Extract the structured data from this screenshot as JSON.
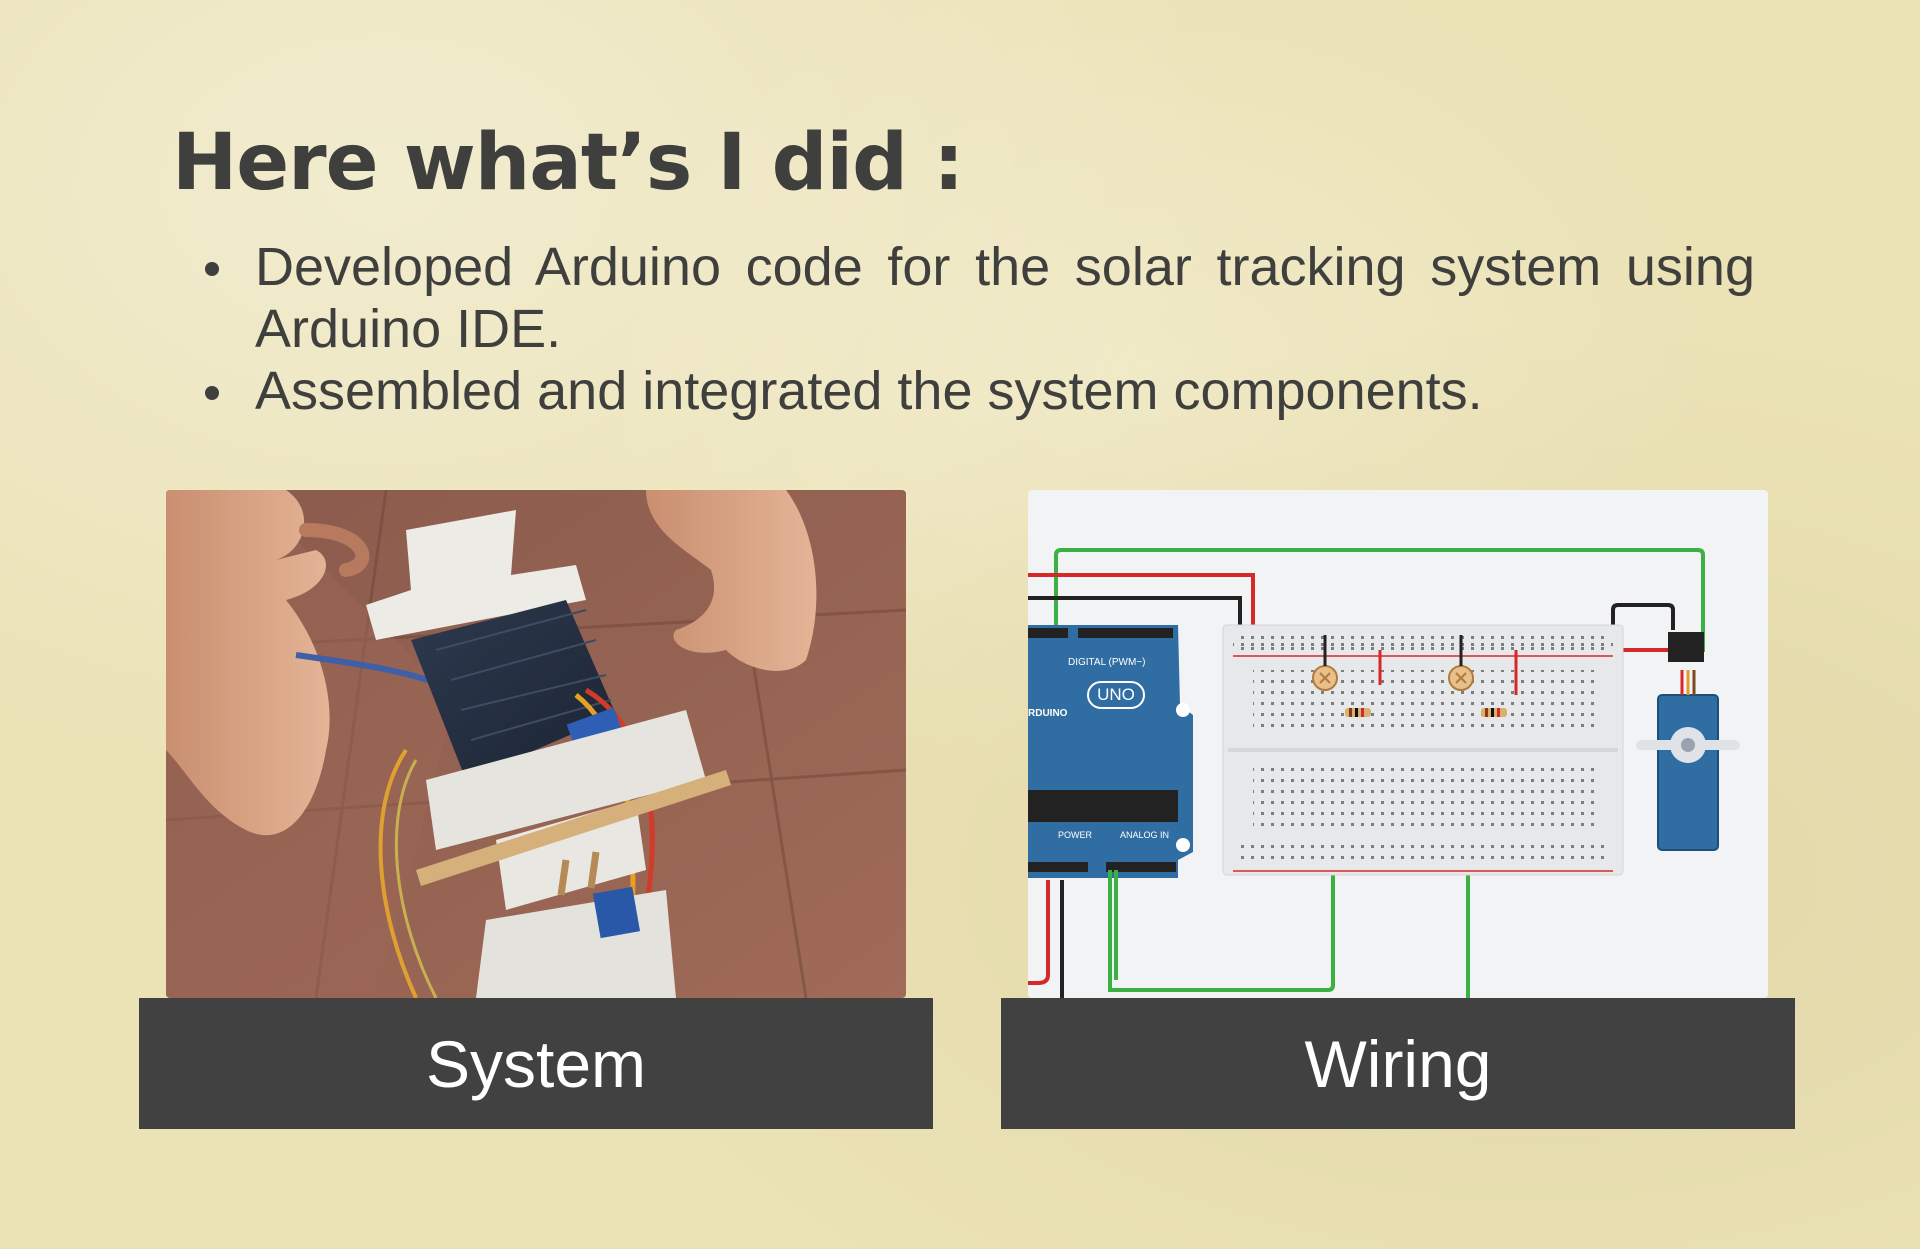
{
  "slide": {
    "title": "Here what’s I did :",
    "bullets": [
      "Developed Arduino code for the solar tracking system using Arduino IDE.",
      "Assembled and integrated the system components."
    ]
  },
  "panels": [
    {
      "caption": "System",
      "image": "photo-solar-tracker-prototype"
    },
    {
      "caption": "Wiring",
      "image": "arduino-breadboard-wiring-diagram"
    }
  ],
  "wiring_labels": {
    "board": "UNO",
    "brand": "RDUINO",
    "digital": "DIGITAL (PWM~)",
    "power": "POWER",
    "analog": "ANALOG IN"
  },
  "colors": {
    "background": "#ebe2b6",
    "text": "#3f3f3e",
    "caption_bg": "#414141",
    "caption_text": "#ffffff",
    "wire_green": "#3cb043",
    "wire_red": "#d62828",
    "arduino_blue": "#2f6da3"
  }
}
